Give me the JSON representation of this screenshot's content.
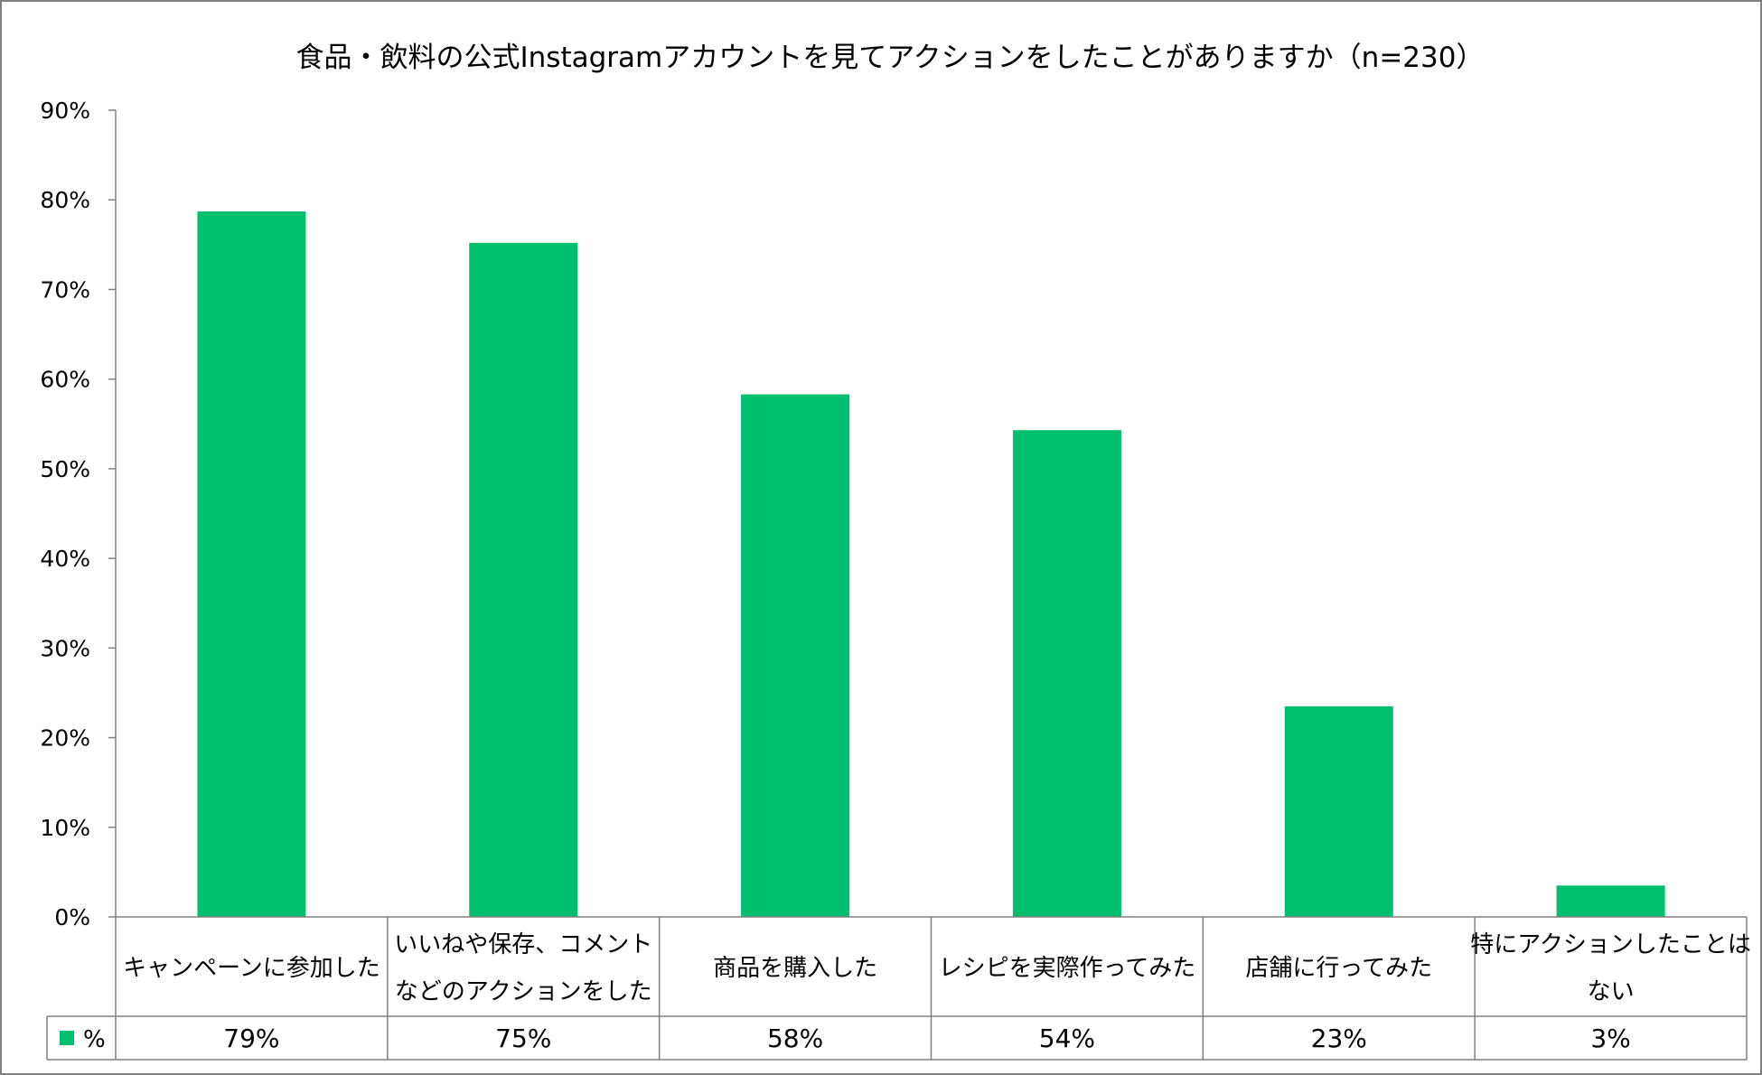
{
  "chart_data": {
    "type": "bar",
    "title": "食品・飲料の公式Instagramアカウントを見てアクションをしたことがありますか（n=230）",
    "categories": [
      [
        "キャンペーンに参加した"
      ],
      [
        "いいねや保存、コメント",
        "などのアクションをした"
      ],
      [
        "商品を購入した"
      ],
      [
        "レシピを実際作ってみた"
      ],
      [
        "店舗に行ってみた"
      ],
      [
        "特にアクションしたことは",
        "ない"
      ]
    ],
    "series": [
      {
        "name": "%",
        "values": [
          78.7,
          75.2,
          58.3,
          54.3,
          23.5,
          3.5
        ],
        "labels": [
          "79%",
          "75%",
          "58%",
          "54%",
          "23%",
          "3%"
        ],
        "color": "#00BF6F"
      }
    ],
    "ylim": [
      0,
      90
    ],
    "yticks": [
      0,
      10,
      20,
      30,
      40,
      50,
      60,
      70,
      80,
      90
    ],
    "ytick_labels": [
      "0%",
      "10%",
      "20%",
      "30%",
      "40%",
      "50%",
      "60%",
      "70%",
      "80%",
      "90%"
    ],
    "grid": false,
    "legend": "data-table-left"
  }
}
